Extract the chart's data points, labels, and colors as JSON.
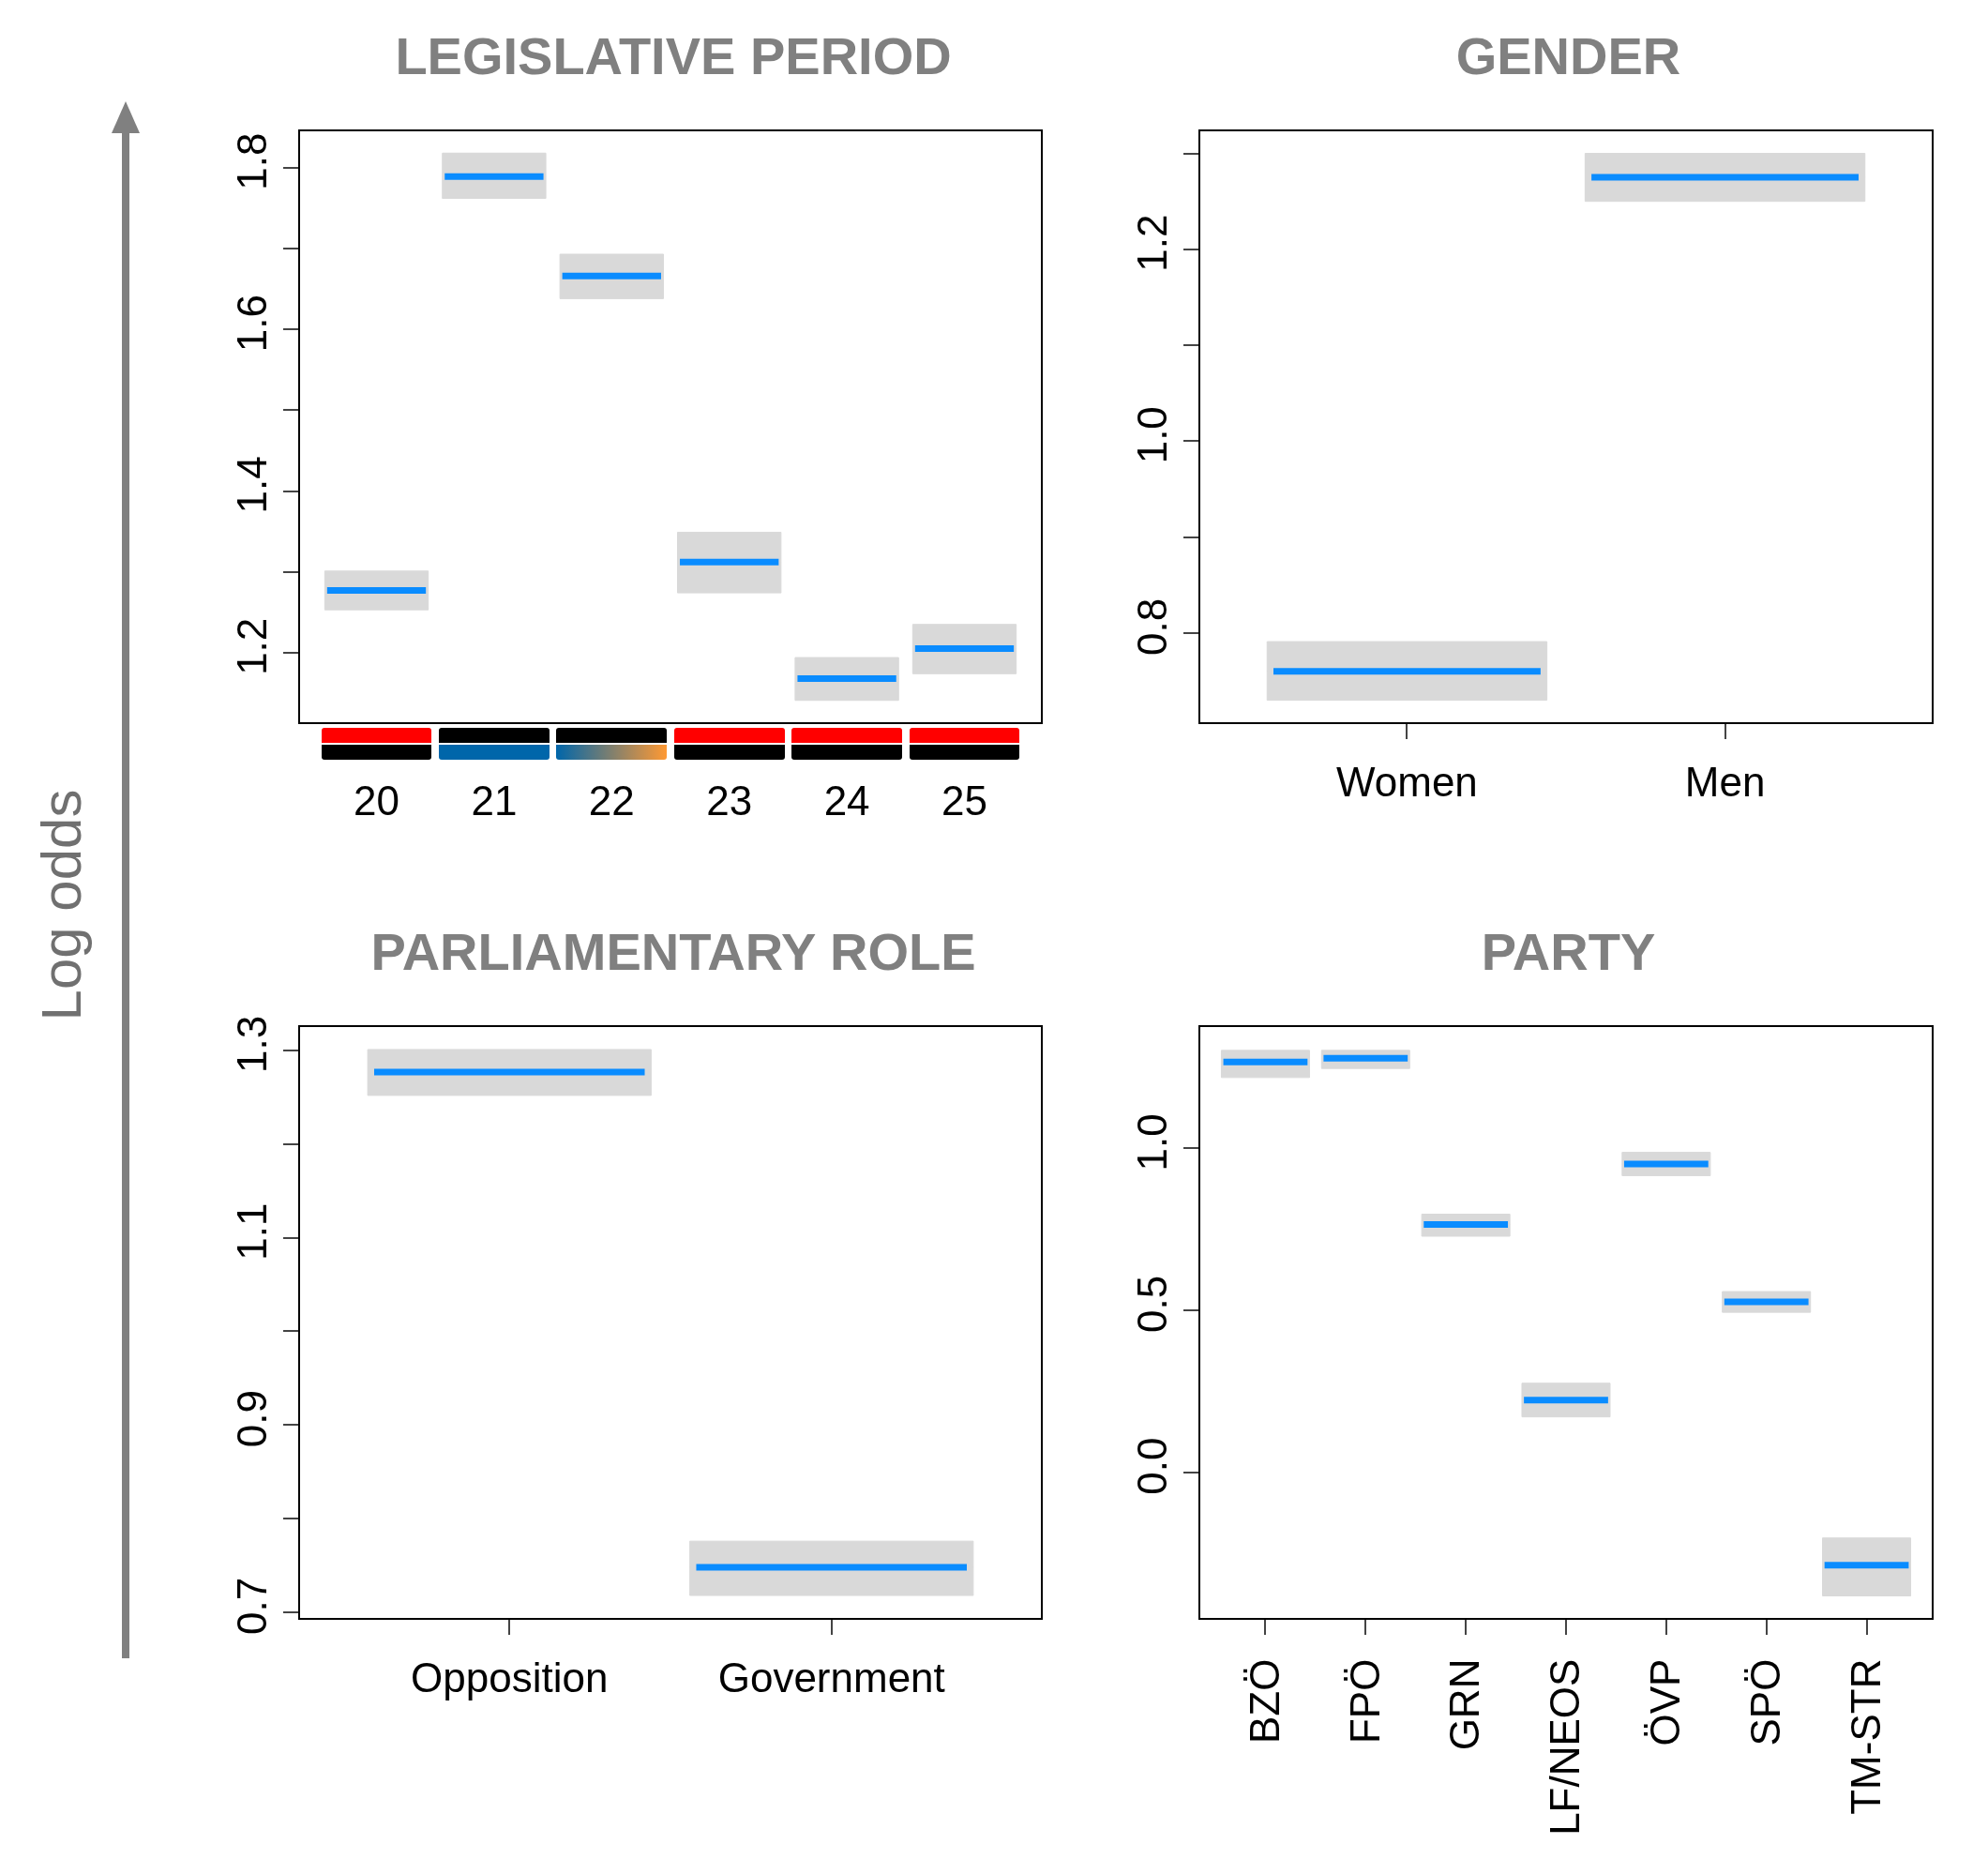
{
  "chart_data": [
    {
      "type": "box",
      "title": "LEGISLATIVE PERIOD",
      "ylabel": "Log odds",
      "categories": [
        "20",
        "21",
        "22",
        "23",
        "24",
        "25"
      ],
      "color": "#d9d9d9",
      "boxes": [
        {
          "low": 1.253,
          "q1": 1.253,
          "median": 1.277,
          "q3": 1.301,
          "high": 1.301
        },
        {
          "low": 1.762,
          "q1": 1.762,
          "median": 1.789,
          "q3": 1.818,
          "high": 1.818
        },
        {
          "low": 1.638,
          "q1": 1.638,
          "median": 1.666,
          "q3": 1.693,
          "high": 1.693
        },
        {
          "low": 1.274,
          "q1": 1.274,
          "median": 1.312,
          "q3": 1.349,
          "high": 1.349
        },
        {
          "low": 1.141,
          "q1": 1.141,
          "median": 1.168,
          "q3": 1.194,
          "high": 1.194
        },
        {
          "low": 1.174,
          "q1": 1.174,
          "median": 1.205,
          "q3": 1.235,
          "high": 1.235
        }
      ],
      "ylim": [
        1.114,
        1.845
      ],
      "yticks": [
        1.2,
        {
          "value": 1.3,
          "label": null
        },
        1.4,
        {
          "value": 1.5,
          "label": null
        },
        1.6,
        {
          "value": 1.7,
          "label": null
        },
        1.8
      ]
    },
    {
      "type": "box",
      "title": "GENDER",
      "categories": [
        "Women",
        "Men"
      ],
      "color": "#d9d9d9",
      "boxes": [
        {
          "low": 0.73,
          "q1": 0.73,
          "median": 0.76,
          "q3": 0.791,
          "high": 0.791
        },
        {
          "low": 1.25,
          "q1": 1.25,
          "median": 1.275,
          "q3": 1.3,
          "high": 1.3
        }
      ],
      "ylim": [
        0.707,
        1.323
      ],
      "yticks": [
        0.8,
        {
          "value": 0.9,
          "label": null
        },
        {
          "value": 1,
          "label": "1.0"
        },
        {
          "value": 1.1,
          "label": null
        },
        1.2,
        {
          "value": 1.3,
          "label": null
        }
      ]
    },
    {
      "type": "box",
      "title": "PARLIAMENTARY ROLE",
      "categories": [
        "Opposition",
        "Government"
      ],
      "color": "#d9d9d9",
      "boxes": [
        {
          "low": 1.252,
          "q1": 1.252,
          "median": 1.277,
          "q3": 1.301,
          "high": 1.301
        },
        {
          "low": 0.718,
          "q1": 0.718,
          "median": 0.748,
          "q3": 0.776,
          "high": 0.776
        }
      ],
      "ylim": [
        0.694,
        1.325
      ],
      "yticks": [
        0.7,
        {
          "value": 0.8,
          "label": null
        },
        0.9,
        {
          "value": 1,
          "label": null
        },
        1.1,
        {
          "value": 1.2,
          "label": null
        },
        1.3
      ]
    },
    {
      "type": "box",
      "title": "PARTY",
      "categories": [
        "BZÖ",
        "FPÖ",
        "GRN",
        "LF/NEOS",
        "ÖVP",
        "SPÖ",
        "TM-STR"
      ],
      "color": "#d9d9d9",
      "boxes": [
        {
          "low": 1.219,
          "q1": 1.219,
          "median": 1.267,
          "q3": 1.303,
          "high": 1.303
        },
        {
          "low": 1.247,
          "q1": 1.247,
          "median": 1.279,
          "q3": 1.303,
          "high": 1.303
        },
        {
          "low": 0.729,
          "q1": 0.729,
          "median": 0.765,
          "q3": 0.797,
          "high": 0.797
        },
        {
          "low": 0.171,
          "q1": 0.171,
          "median": 0.223,
          "q3": 0.275,
          "high": 0.275
        },
        {
          "low": 0.916,
          "q1": 0.916,
          "median": 0.952,
          "q3": 0.988,
          "high": 0.988
        },
        {
          "low": 0.494,
          "q1": 0.494,
          "median": 0.526,
          "q3": 0.558,
          "high": 0.558
        },
        {
          "low": -0.382,
          "q1": -0.382,
          "median": -0.287,
          "q3": -0.203,
          "high": -0.203
        }
      ],
      "ylim": [
        -0.45,
        1.375
      ],
      "yticks": [
        {
          "value": 0,
          "label": "0.0"
        },
        0.5,
        {
          "value": 1,
          "label": "1.0"
        }
      ]
    }
  ]
}
